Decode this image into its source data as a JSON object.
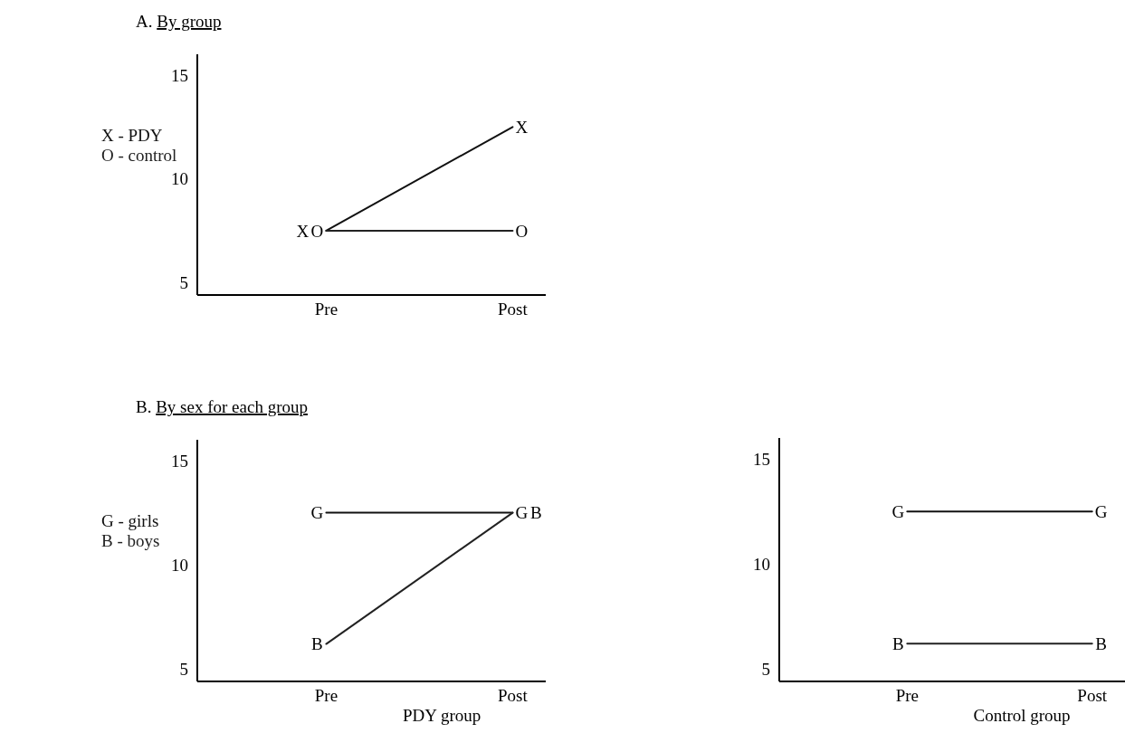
{
  "chart_data": [
    {
      "type": "line",
      "title": "A. By group",
      "categories": [
        "Pre",
        "Post"
      ],
      "ylim": [
        4.4,
        16
      ],
      "yticks": [
        5,
        10,
        15
      ],
      "legend": "left",
      "grid": false,
      "marker": "none",
      "series": [
        {
          "name": "X - PDY",
          "color": "#111111",
          "values": [
            7.5,
            12.5
          ]
        },
        {
          "name": "O - control",
          "color": "#222222",
          "values": [
            7.5,
            7.5
          ]
        }
      ],
      "annotations": [
        {
          "text": "X",
          "x": "Pre",
          "y": 7.5
        },
        {
          "text": "O",
          "x": "Pre",
          "y": 7.5
        },
        {
          "text": "X",
          "x": "Post",
          "y": 12.5
        },
        {
          "text": "O",
          "x": "Post",
          "y": 7.5
        }
      ]
    },
    {
      "type": "line",
      "title": "B. By sex for each group",
      "xlabel": "PDY group",
      "categories": [
        "Pre",
        "Post"
      ],
      "ylim": [
        4.4,
        16
      ],
      "yticks": [
        5,
        10,
        15
      ],
      "legend": "left",
      "grid": false,
      "marker": "none",
      "series": [
        {
          "name": "G - girls",
          "color": "#111111",
          "values": [
            12.5,
            12.5
          ]
        },
        {
          "name": "B - boys",
          "color": "#222222",
          "values": [
            6.2,
            12.5
          ]
        }
      ],
      "annotations": [
        {
          "text": "G",
          "x": "Pre",
          "y": 12.5
        },
        {
          "text": "B",
          "x": "Pre",
          "y": 6.2
        },
        {
          "text": "G",
          "x": "Post",
          "y": 12.5
        },
        {
          "text": "B",
          "x": "Post",
          "y": 12.5
        }
      ]
    },
    {
      "type": "line",
      "xlabel": "Control group",
      "categories": [
        "Pre",
        "Post"
      ],
      "ylim": [
        4.4,
        16
      ],
      "yticks": [
        5,
        10,
        15
      ],
      "grid": false,
      "marker": "none",
      "series": [
        {
          "color": "#111111",
          "values": [
            12.5,
            12.5
          ]
        },
        {
          "color": "#222222",
          "values": [
            6.2,
            6.2
          ]
        }
      ],
      "annotations": [
        {
          "text": "G",
          "x": "Pre",
          "y": 12.5
        },
        {
          "text": "B",
          "x": "Pre",
          "y": 6.2
        },
        {
          "text": "G",
          "x": "Post",
          "y": 12.5
        },
        {
          "text": "B",
          "x": "Post",
          "y": 6.2
        }
      ]
    }
  ]
}
